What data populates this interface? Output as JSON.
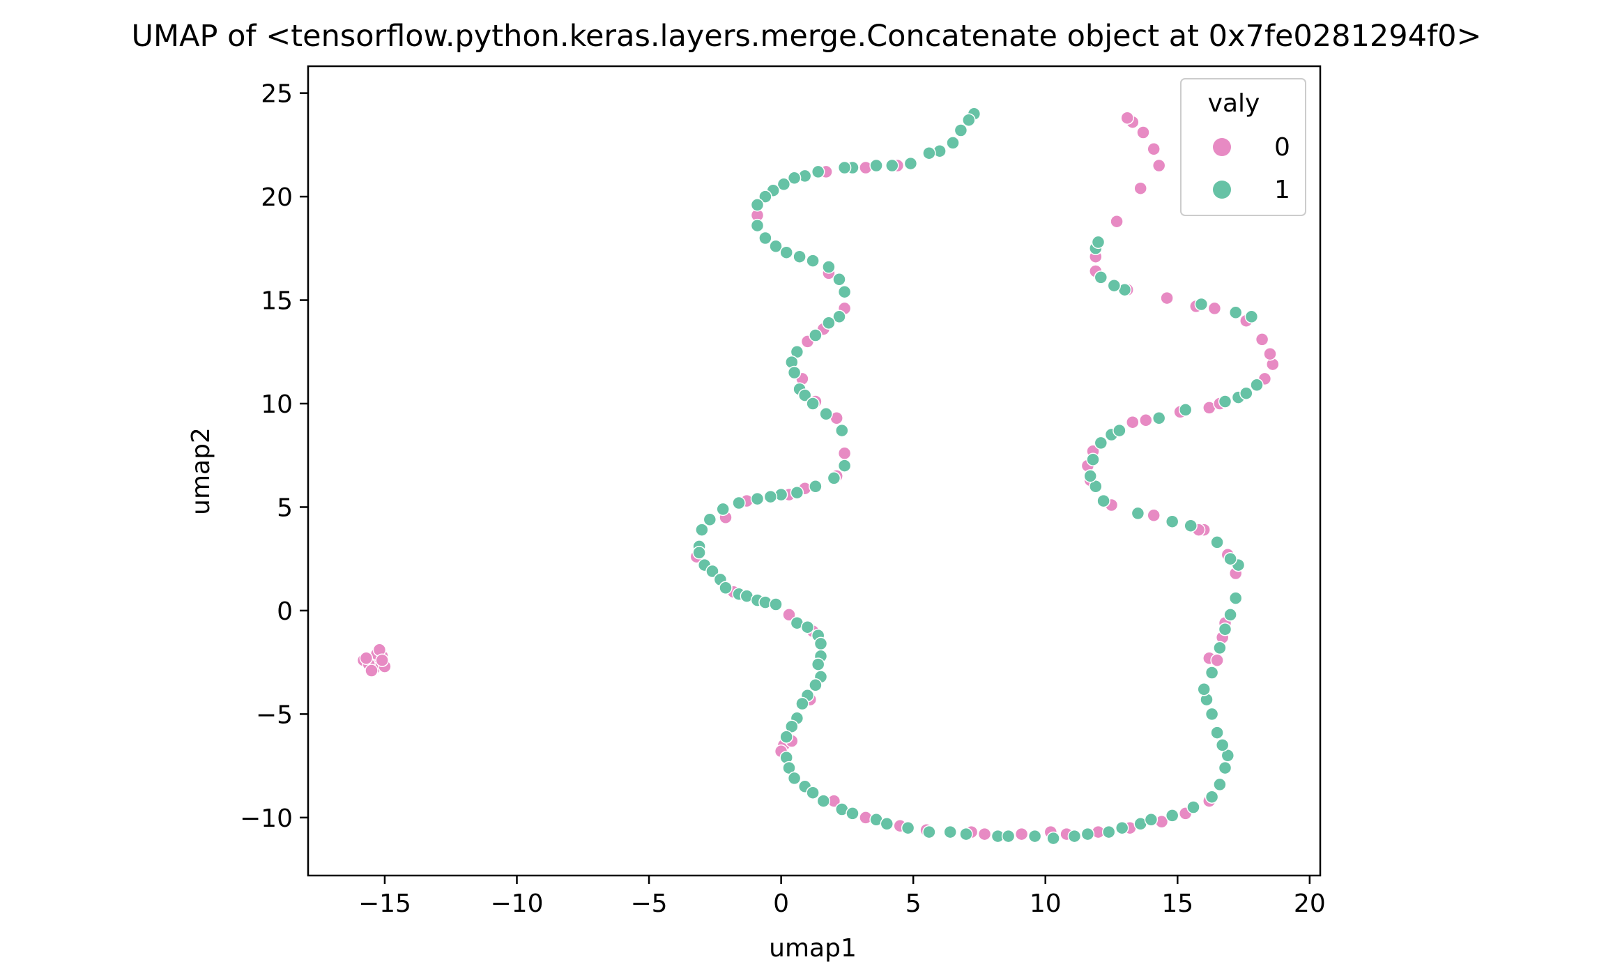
{
  "chart_data": {
    "type": "scatter",
    "title": "UMAP of <tensorflow.python.keras.layers.merge.Concatenate object at 0x7fe0281294f0>",
    "xlabel": "umap1",
    "ylabel": "umap2",
    "xlim": [
      -17.9,
      20.4
    ],
    "ylim": [
      -12.8,
      26.3
    ],
    "xticks": [
      -15,
      -10,
      -5,
      0,
      5,
      10,
      15,
      20
    ],
    "yticks": [
      -10,
      -5,
      0,
      5,
      10,
      15,
      20,
      25
    ],
    "xtick_labels": [
      "−15",
      "−10",
      "−5",
      "0",
      "5",
      "10",
      "15",
      "20"
    ],
    "ytick_labels": [
      "−10",
      "−5",
      "0",
      "5",
      "10",
      "15",
      "20",
      "25"
    ],
    "grid": false,
    "legend": {
      "title": "valy",
      "placement": "top-right",
      "entries": [
        "0",
        "1"
      ]
    },
    "colors": {
      "0": "#e78ac3",
      "1": "#66c2a5"
    },
    "series": [
      {
        "name": "0",
        "color": "#e78ac3",
        "points": [
          [
            -15.8,
            -2.4
          ],
          [
            -15.5,
            -2.3
          ],
          [
            -15.2,
            -2.5
          ],
          [
            -15.1,
            -2.2
          ],
          [
            -15.4,
            -2.8
          ],
          [
            -15.0,
            -2.7
          ],
          [
            -15.6,
            -2.6
          ],
          [
            -15.3,
            -2.1
          ],
          [
            -15.2,
            -1.9
          ],
          [
            -15.5,
            -2.9
          ],
          [
            -15.1,
            -2.4
          ],
          [
            -15.7,
            -2.3
          ],
          [
            -3.2,
            2.6
          ],
          [
            -1.8,
            0.9
          ],
          [
            0.3,
            -0.2
          ],
          [
            1.2,
            -1.0
          ],
          [
            1.1,
            -4.3
          ],
          [
            0.1,
            -6.5
          ],
          [
            0.0,
            -6.8
          ],
          [
            0.4,
            -6.3
          ],
          [
            2.0,
            -9.2
          ],
          [
            3.2,
            -10.0
          ],
          [
            4.5,
            -10.4
          ],
          [
            5.5,
            -10.6
          ],
          [
            7.2,
            -10.7
          ],
          [
            7.7,
            -10.8
          ],
          [
            9.1,
            -10.8
          ],
          [
            10.2,
            -10.7
          ],
          [
            10.8,
            -10.8
          ],
          [
            12.0,
            -10.7
          ],
          [
            13.2,
            -10.5
          ],
          [
            14.4,
            -10.2
          ],
          [
            15.3,
            -9.8
          ],
          [
            16.2,
            -9.2
          ],
          [
            16.2,
            -2.3
          ],
          [
            16.5,
            -2.4
          ],
          [
            16.7,
            -1.3
          ],
          [
            16.8,
            -0.6
          ],
          [
            17.2,
            1.8
          ],
          [
            16.9,
            2.7
          ],
          [
            16.0,
            3.9
          ],
          [
            15.8,
            3.9
          ],
          [
            14.1,
            4.6
          ],
          [
            12.5,
            5.1
          ],
          [
            11.7,
            6.3
          ],
          [
            11.6,
            7.0
          ],
          [
            11.8,
            7.7
          ],
          [
            13.3,
            9.1
          ],
          [
            13.8,
            9.2
          ],
          [
            15.1,
            9.6
          ],
          [
            16.2,
            9.8
          ],
          [
            16.6,
            10.0
          ],
          [
            18.3,
            11.2
          ],
          [
            18.6,
            11.9
          ],
          [
            18.5,
            12.4
          ],
          [
            18.2,
            13.1
          ],
          [
            17.6,
            14.0
          ],
          [
            16.4,
            14.6
          ],
          [
            15.7,
            14.7
          ],
          [
            14.6,
            15.1
          ],
          [
            13.1,
            15.5
          ],
          [
            11.9,
            16.4
          ],
          [
            11.9,
            17.1
          ],
          [
            12.7,
            18.8
          ],
          [
            13.6,
            20.4
          ],
          [
            14.3,
            21.5
          ],
          [
            14.1,
            22.3
          ],
          [
            13.7,
            23.1
          ],
          [
            13.3,
            23.6
          ],
          [
            13.1,
            23.8
          ],
          [
            -0.9,
            19.1
          ],
          [
            1.7,
            21.2
          ],
          [
            3.2,
            21.4
          ],
          [
            4.4,
            21.5
          ],
          [
            1.8,
            16.3
          ],
          [
            2.4,
            14.6
          ],
          [
            1.6,
            13.6
          ],
          [
            1.0,
            13.0
          ],
          [
            0.8,
            11.2
          ],
          [
            1.3,
            10.1
          ],
          [
            2.1,
            9.3
          ],
          [
            2.4,
            7.6
          ],
          [
            2.1,
            6.5
          ],
          [
            0.9,
            5.9
          ],
          [
            0.3,
            5.6
          ],
          [
            -1.3,
            5.3
          ],
          [
            -2.1,
            4.5
          ]
        ]
      },
      {
        "name": "1",
        "color": "#66c2a5",
        "points": [
          [
            7.3,
            24.0
          ],
          [
            7.1,
            23.7
          ],
          [
            6.8,
            23.2
          ],
          [
            6.5,
            22.6
          ],
          [
            6.0,
            22.2
          ],
          [
            5.6,
            22.1
          ],
          [
            4.9,
            21.6
          ],
          [
            4.2,
            21.5
          ],
          [
            3.6,
            21.5
          ],
          [
            2.7,
            21.4
          ],
          [
            2.4,
            21.4
          ],
          [
            1.4,
            21.2
          ],
          [
            0.9,
            21.0
          ],
          [
            0.5,
            20.9
          ],
          [
            0.1,
            20.6
          ],
          [
            -0.3,
            20.3
          ],
          [
            -0.6,
            20.0
          ],
          [
            -0.9,
            19.6
          ],
          [
            -0.9,
            18.6
          ],
          [
            -0.6,
            18.0
          ],
          [
            -0.2,
            17.6
          ],
          [
            0.2,
            17.3
          ],
          [
            0.7,
            17.1
          ],
          [
            1.2,
            16.9
          ],
          [
            1.8,
            16.6
          ],
          [
            2.2,
            16.0
          ],
          [
            2.4,
            15.4
          ],
          [
            2.2,
            14.2
          ],
          [
            1.8,
            13.9
          ],
          [
            1.3,
            13.3
          ],
          [
            0.6,
            12.5
          ],
          [
            0.4,
            12.0
          ],
          [
            0.5,
            11.5
          ],
          [
            0.7,
            10.7
          ],
          [
            0.9,
            10.4
          ],
          [
            1.2,
            10.0
          ],
          [
            1.7,
            9.5
          ],
          [
            2.3,
            8.7
          ],
          [
            2.4,
            7.0
          ],
          [
            2.0,
            6.4
          ],
          [
            1.3,
            6.0
          ],
          [
            0.6,
            5.7
          ],
          [
            0.0,
            5.6
          ],
          [
            -0.4,
            5.5
          ],
          [
            -0.9,
            5.4
          ],
          [
            -1.6,
            5.2
          ],
          [
            -2.2,
            4.9
          ],
          [
            -2.7,
            4.4
          ],
          [
            -3.0,
            3.9
          ],
          [
            -3.1,
            3.1
          ],
          [
            -3.1,
            2.8
          ],
          [
            -2.9,
            2.2
          ],
          [
            -2.6,
            1.9
          ],
          [
            -2.3,
            1.5
          ],
          [
            -2.1,
            1.1
          ],
          [
            -1.6,
            0.8
          ],
          [
            -1.3,
            0.7
          ],
          [
            -0.9,
            0.5
          ],
          [
            -0.6,
            0.4
          ],
          [
            -0.2,
            0.3
          ],
          [
            0.6,
            -0.6
          ],
          [
            1.0,
            -0.8
          ],
          [
            1.4,
            -1.2
          ],
          [
            1.5,
            -1.6
          ],
          [
            1.5,
            -2.2
          ],
          [
            1.4,
            -2.6
          ],
          [
            1.5,
            -3.2
          ],
          [
            1.3,
            -3.6
          ],
          [
            1.0,
            -4.1
          ],
          [
            0.8,
            -4.5
          ],
          [
            0.6,
            -5.2
          ],
          [
            0.4,
            -5.6
          ],
          [
            0.2,
            -6.1
          ],
          [
            0.2,
            -7.1
          ],
          [
            0.3,
            -7.6
          ],
          [
            0.5,
            -8.1
          ],
          [
            0.9,
            -8.5
          ],
          [
            1.2,
            -8.8
          ],
          [
            1.6,
            -9.2
          ],
          [
            2.3,
            -9.6
          ],
          [
            2.7,
            -9.8
          ],
          [
            3.6,
            -10.1
          ],
          [
            4.0,
            -10.3
          ],
          [
            4.8,
            -10.5
          ],
          [
            5.6,
            -10.7
          ],
          [
            6.4,
            -10.7
          ],
          [
            7.0,
            -10.8
          ],
          [
            8.2,
            -10.9
          ],
          [
            8.6,
            -10.9
          ],
          [
            9.6,
            -10.9
          ],
          [
            10.3,
            -11.0
          ],
          [
            11.1,
            -10.9
          ],
          [
            11.6,
            -10.8
          ],
          [
            12.4,
            -10.7
          ],
          [
            12.9,
            -10.5
          ],
          [
            13.6,
            -10.3
          ],
          [
            14.0,
            -10.1
          ],
          [
            14.8,
            -9.9
          ],
          [
            15.6,
            -9.5
          ],
          [
            16.3,
            -9.0
          ],
          [
            16.6,
            -8.4
          ],
          [
            16.8,
            -7.6
          ],
          [
            16.9,
            -7.0
          ],
          [
            16.7,
            -6.5
          ],
          [
            16.5,
            -5.9
          ],
          [
            16.3,
            -5.0
          ],
          [
            16.1,
            -4.3
          ],
          [
            16.0,
            -3.8
          ],
          [
            16.3,
            -3.0
          ],
          [
            16.6,
            -1.8
          ],
          [
            16.8,
            -0.9
          ],
          [
            17.0,
            -0.2
          ],
          [
            17.2,
            0.6
          ],
          [
            17.3,
            2.2
          ],
          [
            17.0,
            2.5
          ],
          [
            16.5,
            3.3
          ],
          [
            15.5,
            4.1
          ],
          [
            14.8,
            4.3
          ],
          [
            13.5,
            4.7
          ],
          [
            12.2,
            5.3
          ],
          [
            11.9,
            6.0
          ],
          [
            11.7,
            6.5
          ],
          [
            11.8,
            7.3
          ],
          [
            12.1,
            8.1
          ],
          [
            12.5,
            8.5
          ],
          [
            12.8,
            8.7
          ],
          [
            14.3,
            9.3
          ],
          [
            15.3,
            9.7
          ],
          [
            16.8,
            10.1
          ],
          [
            17.3,
            10.3
          ],
          [
            17.6,
            10.5
          ],
          [
            18.0,
            10.9
          ],
          [
            17.8,
            14.2
          ],
          [
            17.2,
            14.4
          ],
          [
            15.9,
            14.8
          ],
          [
            13.0,
            15.5
          ],
          [
            12.6,
            15.7
          ],
          [
            12.1,
            16.1
          ],
          [
            11.9,
            17.5
          ],
          [
            12.0,
            17.8
          ]
        ]
      }
    ]
  }
}
